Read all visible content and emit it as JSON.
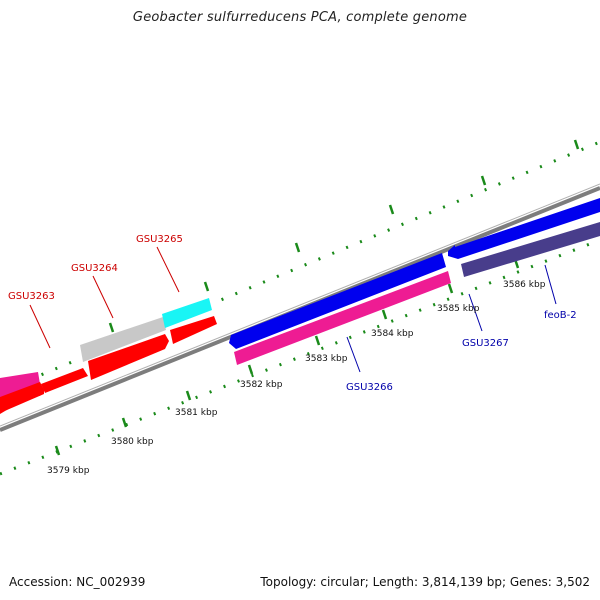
{
  "title": "Geobacter sulfurreducens PCA, complete genome",
  "footer": {
    "accession": "Accession: NC_002939",
    "summary": "Topology: circular; Length: 3,814,139 bp; Genes: 3,502"
  },
  "ticks": {
    "labels": [
      "3579 kbp",
      "3580 kbp",
      "3581 kbp",
      "3582 kbp",
      "3583 kbp",
      "3584 kbp",
      "3585 kbp",
      "3586 kbp"
    ]
  },
  "gene_labels": {
    "forward": [
      "GSU3263",
      "GSU3264",
      "GSU3265"
    ],
    "reverse": [
      "GSU3266",
      "GSU3267",
      "feoB-2"
    ]
  },
  "colors": {
    "backbone": "#808080",
    "tick": "#1a8a1a",
    "forward_label": "#cc0000",
    "reverse_label": "#0000aa",
    "red": "#ff0000",
    "magenta": "#ee1c93",
    "gray": "#c8c8c8",
    "cyan": "#19f5f5",
    "blue": "#0000ee",
    "slate": "#483d8b"
  }
}
